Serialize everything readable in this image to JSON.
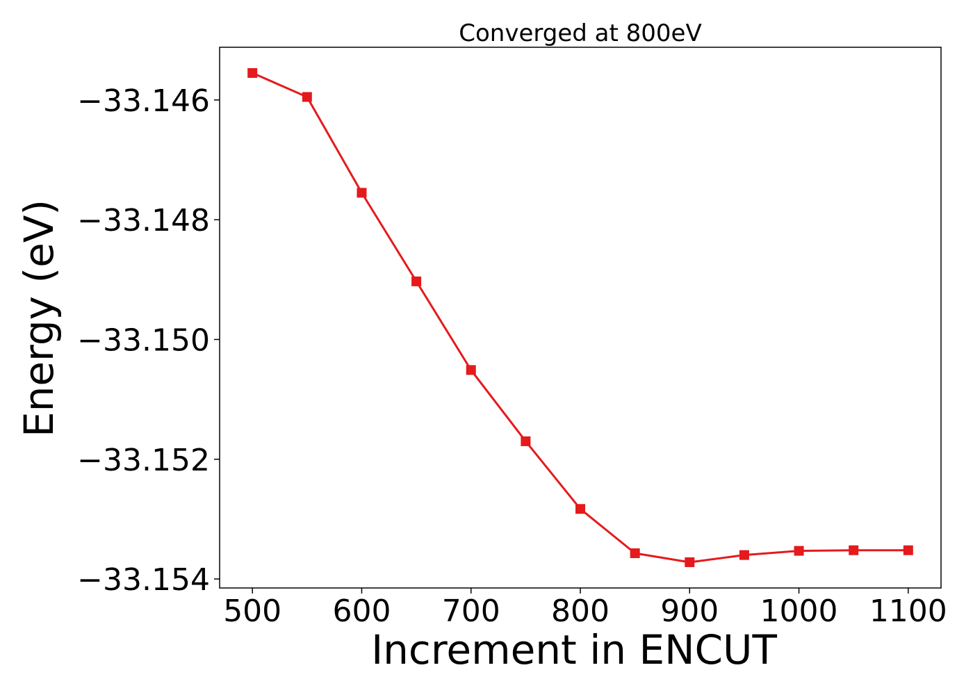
{
  "chart_data": {
    "type": "line",
    "title": "Converged at 800eV",
    "xlabel": "Increment in ENCUT",
    "ylabel": "Energy (eV)",
    "x": [
      500,
      550,
      600,
      650,
      700,
      750,
      800,
      850,
      900,
      950,
      1000,
      1050,
      1100
    ],
    "series": [
      {
        "values": [
          -33.14555,
          -33.14595,
          -33.14755,
          -33.14903,
          -33.15051,
          -33.1517,
          -33.15283,
          -33.15357,
          -33.15372,
          -33.1536,
          -33.15353,
          -33.15352,
          -33.15352
        ],
        "color": "#e41a1c",
        "marker": "square"
      }
    ],
    "xlim": [
      470,
      1130
    ],
    "ylim": [
      -33.15415,
      -33.14512
    ],
    "xticks": [
      500,
      600,
      700,
      800,
      900,
      1000,
      1100
    ],
    "xtick_labels": [
      "500",
      "600",
      "700",
      "800",
      "900",
      "1000",
      "1100"
    ],
    "yticks": [
      -33.146,
      -33.148,
      -33.15,
      -33.152,
      -33.154
    ],
    "ytick_labels": [
      "−33.146",
      "−33.148",
      "−33.150",
      "−33.152",
      "−33.154"
    ],
    "grid": false,
    "legend": "none"
  }
}
